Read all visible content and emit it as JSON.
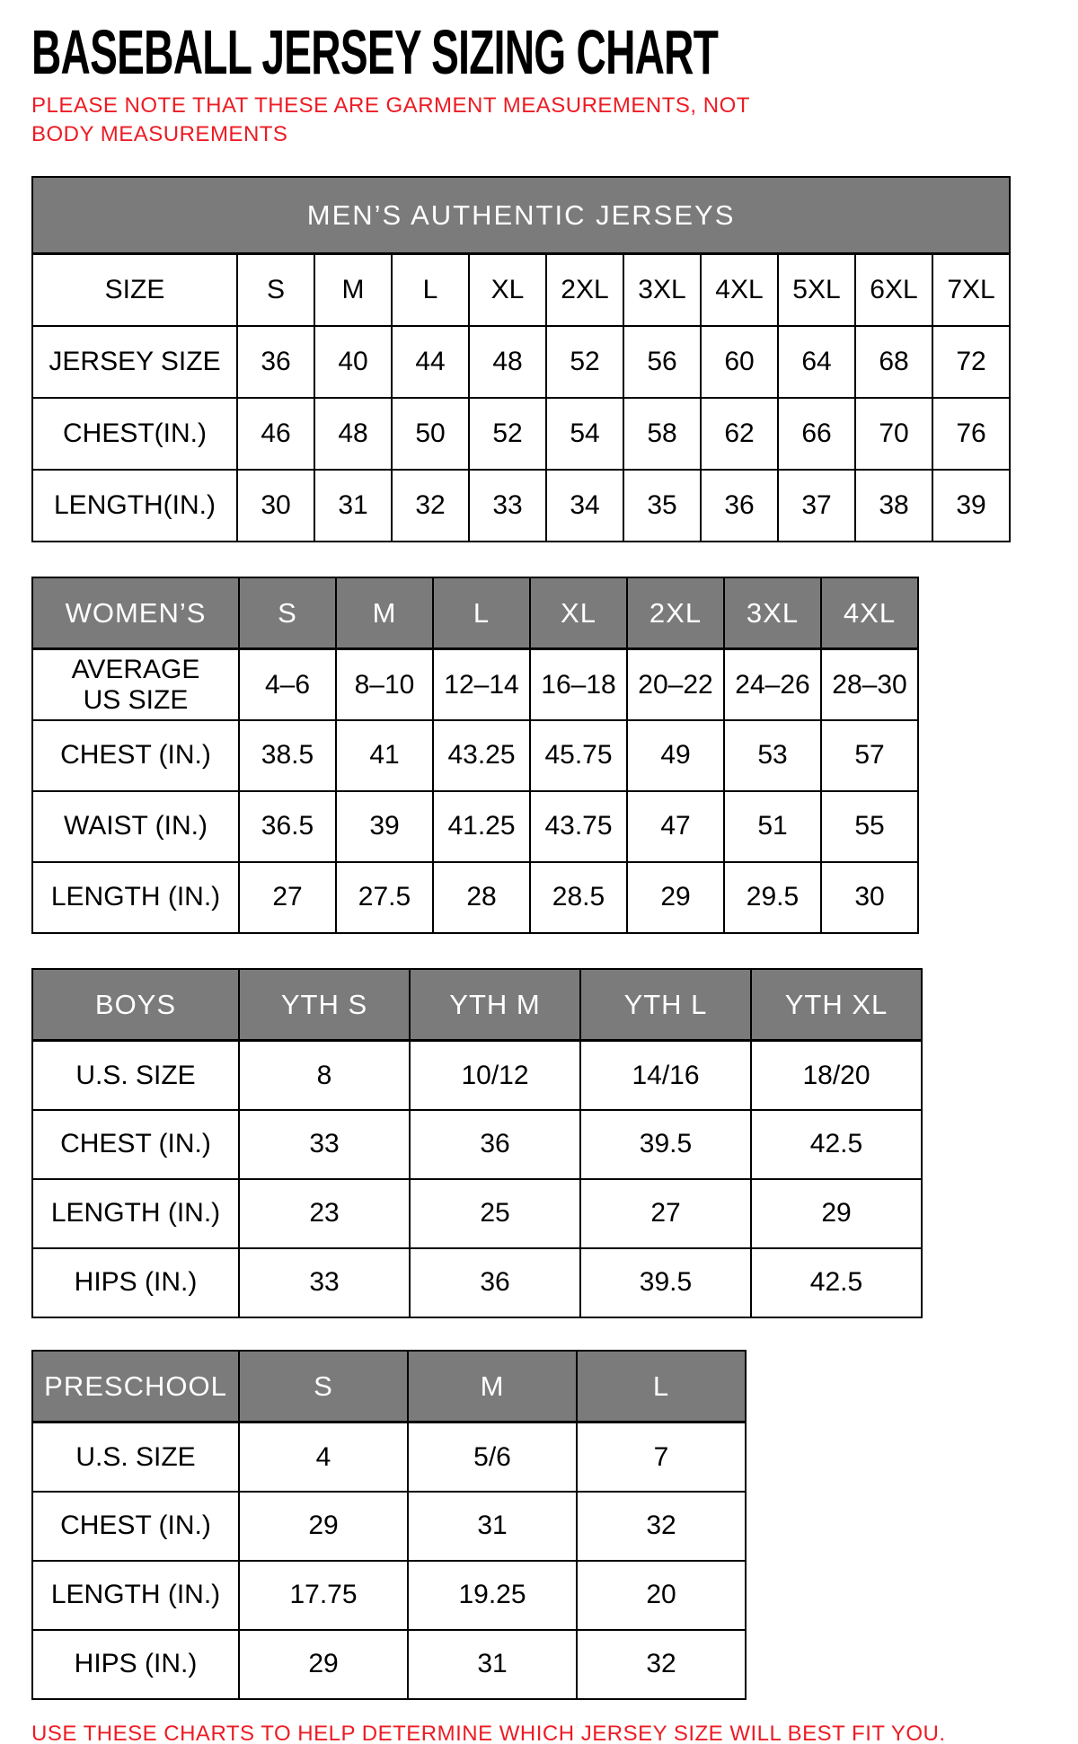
{
  "page": {
    "title": "BASEBALL JERSEY SIZING CHART",
    "note": "PLEASE NOTE THAT THESE ARE GARMENT MEASUREMENTS, NOT BODY MEASUREMENTS",
    "footer": "USE THESE CHARTS TO HELP DETERMINE WHICH JERSEY SIZE WILL BEST FIT YOU.",
    "colors": {
      "accent_red": "#ed1c24",
      "header_gray": "#7b7b7b",
      "header_text": "#ffffff",
      "border": "#000000"
    }
  },
  "tables": [
    {
      "id": "mens",
      "title": "MEN’S AUTHENTIC JERSEYS",
      "rows": [
        {
          "label": "SIZE",
          "values": [
            "S",
            "M",
            "L",
            "XL",
            "2XL",
            "3XL",
            "4XL",
            "5XL",
            "6XL",
            "7XL"
          ]
        },
        {
          "label": "JERSEY SIZE",
          "values": [
            "36",
            "40",
            "44",
            "48",
            "52",
            "56",
            "60",
            "64",
            "68",
            "72"
          ]
        },
        {
          "label": "CHEST(IN.)",
          "values": [
            "46",
            "48",
            "50",
            "52",
            "54",
            "58",
            "62",
            "66",
            "70",
            "76"
          ]
        },
        {
          "label": "LENGTH(IN.)",
          "values": [
            "30",
            "31",
            "32",
            "33",
            "34",
            "35",
            "36",
            "37",
            "38",
            "39"
          ]
        }
      ]
    },
    {
      "id": "womens",
      "header_label": "WOMEN’S",
      "columns": [
        "S",
        "M",
        "L",
        "XL",
        "2XL",
        "3XL",
        "4XL"
      ],
      "rows": [
        {
          "label": "AVERAGE\nUS SIZE",
          "values": [
            "4–6",
            "8–10",
            "12–14",
            "16–18",
            "20–22",
            "24–26",
            "28–30"
          ]
        },
        {
          "label": "CHEST (IN.)",
          "values": [
            "38.5",
            "41",
            "43.25",
            "45.75",
            "49",
            "53",
            "57"
          ]
        },
        {
          "label": "WAIST (IN.)",
          "values": [
            "36.5",
            "39",
            "41.25",
            "43.75",
            "47",
            "51",
            "55"
          ]
        },
        {
          "label": "LENGTH (IN.)",
          "values": [
            "27",
            "27.5",
            "28",
            "28.5",
            "29",
            "29.5",
            "30"
          ]
        }
      ]
    },
    {
      "id": "boys",
      "header_label": "BOYS",
      "columns": [
        "YTH S",
        "YTH M",
        "YTH L",
        "YTH XL"
      ],
      "rows": [
        {
          "label": "U.S. SIZE",
          "values": [
            "8",
            "10/12",
            "14/16",
            "18/20"
          ]
        },
        {
          "label": "CHEST (IN.)",
          "values": [
            "33",
            "36",
            "39.5",
            "42.5"
          ]
        },
        {
          "label": "LENGTH (IN.)",
          "values": [
            "23",
            "25",
            "27",
            "29"
          ]
        },
        {
          "label": "HIPS (IN.)",
          "values": [
            "33",
            "36",
            "39.5",
            "42.5"
          ]
        }
      ]
    },
    {
      "id": "preschool",
      "header_label": "PRESCHOOL",
      "columns": [
        "S",
        "M",
        "L"
      ],
      "rows": [
        {
          "label": "U.S. SIZE",
          "values": [
            "4",
            "5/6",
            "7"
          ]
        },
        {
          "label": "CHEST (IN.)",
          "values": [
            "29",
            "31",
            "32"
          ]
        },
        {
          "label": "LENGTH (IN.)",
          "values": [
            "17.75",
            "19.25",
            "20"
          ]
        },
        {
          "label": "HIPS (IN.)",
          "values": [
            "29",
            "31",
            "32"
          ]
        }
      ]
    }
  ]
}
